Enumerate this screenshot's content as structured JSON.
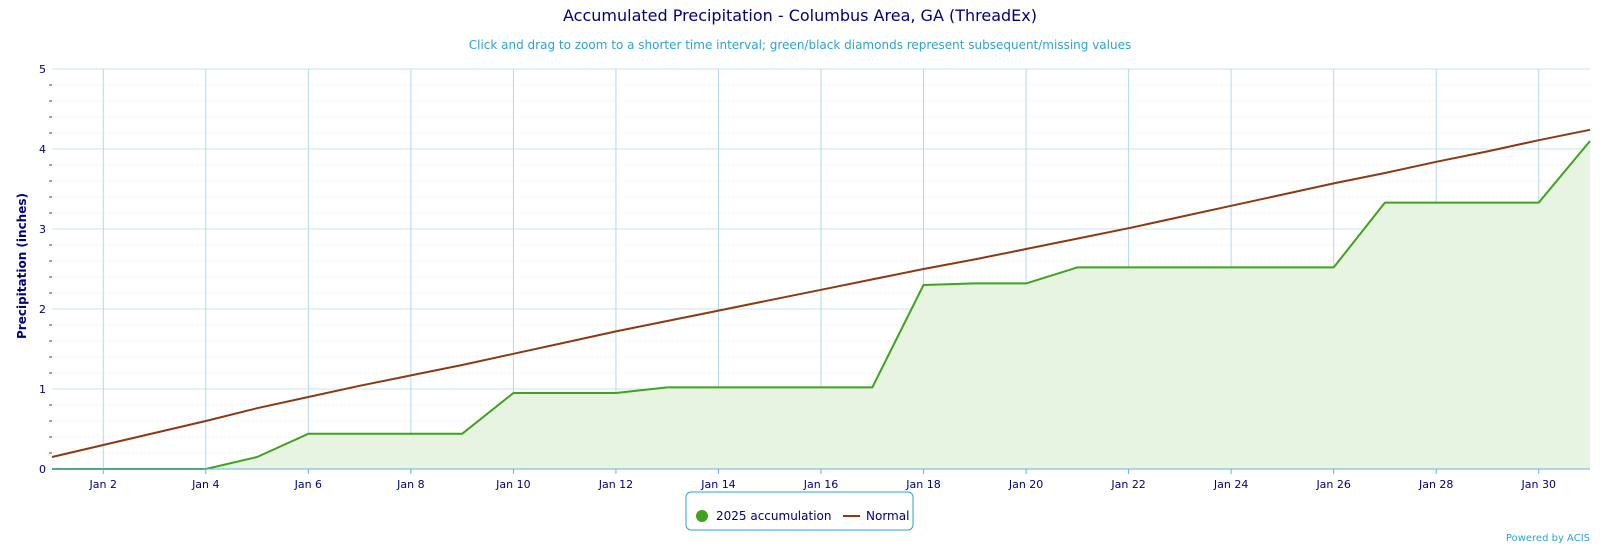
{
  "chart_data": {
    "type": "area",
    "title": "Accumulated Precipitation - Columbus Area, GA (ThreadEx)",
    "subtitle": "Click and drag to zoom to a shorter time interval; green/black diamonds represent subsequent/missing values",
    "ylabel": "Precipitation (inches)",
    "xlabel": "",
    "ylim": [
      0,
      5
    ],
    "xlim": [
      1,
      31
    ],
    "y_ticks": [
      0,
      1,
      2,
      3,
      4,
      5
    ],
    "x_ticks": [
      {
        "day": 2,
        "label": "Jan 2"
      },
      {
        "day": 4,
        "label": "Jan 4"
      },
      {
        "day": 6,
        "label": "Jan 6"
      },
      {
        "day": 8,
        "label": "Jan 8"
      },
      {
        "day": 10,
        "label": "Jan 10"
      },
      {
        "day": 12,
        "label": "Jan 12"
      },
      {
        "day": 14,
        "label": "Jan 14"
      },
      {
        "day": 16,
        "label": "Jan 16"
      },
      {
        "day": 18,
        "label": "Jan 18"
      },
      {
        "day": 20,
        "label": "Jan 20"
      },
      {
        "day": 22,
        "label": "Jan 22"
      },
      {
        "day": 24,
        "label": "Jan 24"
      },
      {
        "day": 26,
        "label": "Jan 26"
      },
      {
        "day": 28,
        "label": "Jan 28"
      },
      {
        "day": 30,
        "label": "Jan 30"
      }
    ],
    "grid": true,
    "legend_position": "bottom-center",
    "series": [
      {
        "name": "2025 accumulation",
        "type": "area",
        "color": "#3fa31c",
        "fill": "#e8f4e2",
        "x": [
          1,
          2,
          3,
          4,
          5,
          6,
          7,
          8,
          9,
          10,
          11,
          12,
          13,
          14,
          15,
          16,
          17,
          18,
          19,
          20,
          21,
          22,
          23,
          24,
          25,
          26,
          27,
          28,
          29,
          30,
          31
        ],
        "values": [
          0,
          0,
          0,
          0,
          0.15,
          0.44,
          0.44,
          0.44,
          0.44,
          0.95,
          0.95,
          0.95,
          1.02,
          1.02,
          1.02,
          1.02,
          1.02,
          2.3,
          2.32,
          2.32,
          2.52,
          2.52,
          2.52,
          2.52,
          2.52,
          2.52,
          3.33,
          3.33,
          3.33,
          3.33,
          4.1
        ]
      },
      {
        "name": "Normal",
        "type": "line",
        "color": "#8b3a12",
        "x": [
          1,
          2,
          3,
          4,
          5,
          6,
          7,
          8,
          9,
          10,
          11,
          12,
          13,
          14,
          15,
          16,
          17,
          18,
          19,
          20,
          21,
          22,
          23,
          24,
          25,
          26,
          27,
          28,
          29,
          30,
          31
        ],
        "values": [
          0.15,
          0.3,
          0.45,
          0.6,
          0.76,
          0.9,
          1.04,
          1.17,
          1.3,
          1.44,
          1.58,
          1.72,
          1.85,
          1.98,
          2.11,
          2.24,
          2.37,
          2.5,
          2.62,
          2.75,
          2.88,
          3.01,
          3.15,
          3.29,
          3.43,
          3.57,
          3.7,
          3.84,
          3.97,
          4.11,
          4.24
        ]
      }
    ]
  },
  "credits": "Powered by ACIS"
}
